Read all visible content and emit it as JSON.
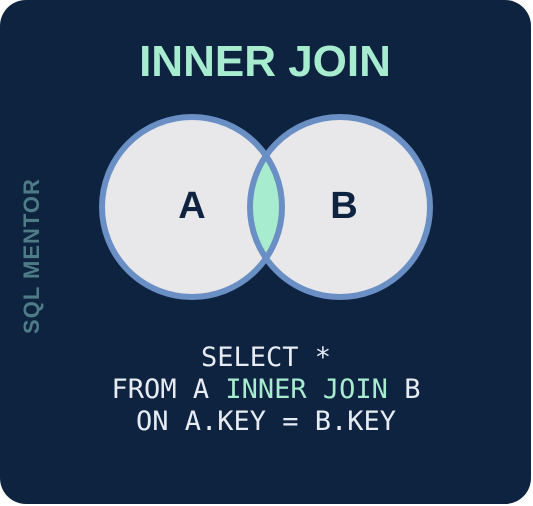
{
  "title": "INNER JOIN",
  "side_label": "SQL MENTOR",
  "venn": {
    "left": "A",
    "right": "B"
  },
  "query": {
    "line1": "SELECT *",
    "line2": {
      "before": "FROM A",
      "keyword": "INNER JOIN",
      "after": "B"
    },
    "line3": "ON A.KEY = B.KEY"
  }
}
